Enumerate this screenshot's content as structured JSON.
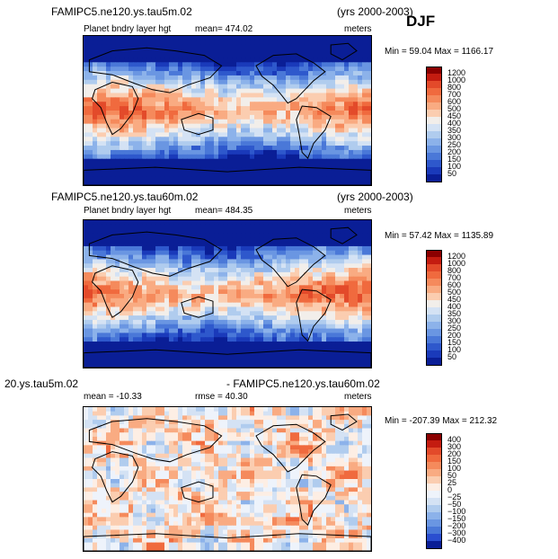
{
  "season": "DJF",
  "panels": [
    {
      "case": "FAMIPC5.ne120.ys.tau5m.02",
      "years": "(yrs 2000-2003)",
      "variable": "Planet bndry layer hgt",
      "mean_text": "mean= 474.02",
      "units": "meters",
      "minmax": "Min =  59.04 Max = 1166.17",
      "levels": [
        "1200",
        "1000",
        "800",
        "700",
        "600",
        "500",
        "450",
        "400",
        "350",
        "300",
        "250",
        "200",
        "150",
        "100",
        "50"
      ],
      "colors": [
        "#8b0000",
        "#c41c10",
        "#e34a2a",
        "#f06a3e",
        "#f58a5c",
        "#f9ab82",
        "#fbcdb0",
        "#f2eeea",
        "#d4e2f4",
        "#b0ccee",
        "#8cb2ea",
        "#6a96e2",
        "#4a78d8",
        "#2e58cc",
        "#1a3aba",
        "#0a1e96"
      ],
      "style": "field"
    },
    {
      "case": "FAMIPC5.ne120.ys.tau60m.02",
      "years": "(yrs 2000-2003)",
      "variable": "Planet bndry layer hgt",
      "mean_text": "mean= 484.35",
      "units": "meters",
      "minmax": "Min =  57.42 Max = 1135.89",
      "levels": [
        "1200",
        "1000",
        "800",
        "700",
        "600",
        "500",
        "450",
        "400",
        "350",
        "300",
        "250",
        "200",
        "150",
        "100",
        "50"
      ],
      "colors": [
        "#8b0000",
        "#c41c10",
        "#e34a2a",
        "#f06a3e",
        "#f58a5c",
        "#f9ab82",
        "#fbcdb0",
        "#f2eeea",
        "#d4e2f4",
        "#b0ccee",
        "#8cb2ea",
        "#6a96e2",
        "#4a78d8",
        "#2e58cc",
        "#1a3aba",
        "#0a1e96"
      ],
      "style": "field"
    },
    {
      "case_left": "20.ys.tau5m.02",
      "case_right": "- FAMIPC5.ne120.ys.tau60m.02",
      "mean_text": "mean = -10.33",
      "rmse_text": "rmse =  40.30",
      "units": "meters",
      "minmax": "Min = -207.39 Max = 212.32",
      "levels": [
        "400",
        "300",
        "200",
        "150",
        "100",
        "50",
        "25",
        "0",
        "−25",
        "−50",
        "−100",
        "−150",
        "−200",
        "−300",
        "−400"
      ],
      "colors": [
        "#8b0000",
        "#c41c10",
        "#e34a2a",
        "#f06a3e",
        "#f58a5c",
        "#f9ab82",
        "#fbcdb0",
        "#fdeee4",
        "#eef3fb",
        "#d4e2f4",
        "#b0ccee",
        "#8cb2ea",
        "#6a96e2",
        "#4a78d8",
        "#2a4ed0",
        "#0a1e96"
      ],
      "style": "diff"
    }
  ],
  "chart_data": [
    {
      "type": "heatmap",
      "title": "FAMIPC5.ne120.ys.tau5m.02 (yrs 2000-2003) DJF",
      "subtitle": "Planet bndry layer hgt",
      "units": "meters",
      "mean": 474.02,
      "min": 59.04,
      "max": 1166.17,
      "contour_levels": [
        50,
        100,
        150,
        200,
        250,
        300,
        350,
        400,
        450,
        500,
        600,
        700,
        800,
        1000,
        1200
      ]
    },
    {
      "type": "heatmap",
      "title": "FAMIPC5.ne120.ys.tau60m.02 (yrs 2000-2003)",
      "subtitle": "Planet bndry layer hgt",
      "units": "meters",
      "mean": 484.35,
      "min": 57.42,
      "max": 1135.89,
      "contour_levels": [
        50,
        100,
        150,
        200,
        250,
        300,
        350,
        400,
        450,
        500,
        600,
        700,
        800,
        1000,
        1200
      ]
    },
    {
      "type": "heatmap",
      "title": "20.ys.tau5m.02 - FAMIPC5.ne120.ys.tau60m.02",
      "units": "meters",
      "mean": -10.33,
      "rmse": 40.3,
      "min": -207.39,
      "max": 212.32,
      "contour_levels": [
        -400,
        -300,
        -200,
        -150,
        -100,
        -50,
        -25,
        0,
        25,
        50,
        100,
        150,
        200,
        300,
        400
      ]
    }
  ]
}
